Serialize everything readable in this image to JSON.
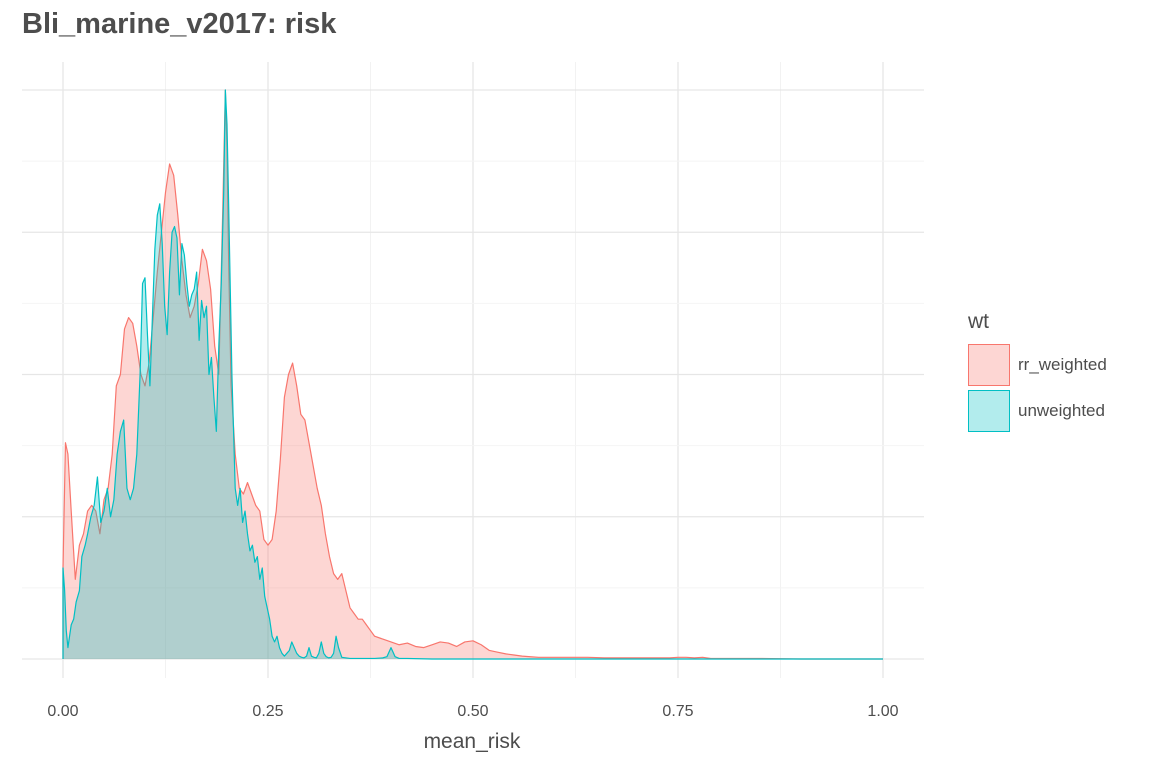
{
  "chart_data": {
    "type": "area",
    "title": "Bli_marine_v2017: risk",
    "xlabel": "mean_risk",
    "ylabel": "",
    "xlim": [
      0,
      1
    ],
    "ylim": [
      0,
      1
    ],
    "x_ticks": [
      {
        "value": 0,
        "label": "0.00"
      },
      {
        "value": 0.25,
        "label": "0.25"
      },
      {
        "value": 0.5,
        "label": "0.50"
      },
      {
        "value": 0.75,
        "label": "0.75"
      },
      {
        "value": 1,
        "label": "1.00"
      }
    ],
    "y_grid": [
      0,
      0.25,
      0.5,
      0.75,
      1
    ],
    "y_tick_labels_shown": false,
    "grid": true,
    "legend": {
      "title": "wt",
      "position": "right"
    },
    "series": [
      {
        "name": "rr_weighted",
        "color": "#F8766D",
        "fill": "#F8766D",
        "fill_opacity": 0.3,
        "x": [
          0,
          0.003,
          0.006,
          0.01,
          0.015,
          0.02,
          0.025,
          0.03,
          0.035,
          0.04,
          0.045,
          0.05,
          0.055,
          0.06,
          0.065,
          0.07,
          0.075,
          0.08,
          0.085,
          0.09,
          0.095,
          0.1,
          0.105,
          0.11,
          0.115,
          0.12,
          0.125,
          0.13,
          0.135,
          0.14,
          0.145,
          0.15,
          0.155,
          0.16,
          0.165,
          0.17,
          0.175,
          0.18,
          0.185,
          0.19,
          0.195,
          0.198,
          0.2,
          0.202,
          0.205,
          0.21,
          0.215,
          0.22,
          0.225,
          0.23,
          0.235,
          0.24,
          0.245,
          0.25,
          0.255,
          0.26,
          0.265,
          0.27,
          0.275,
          0.28,
          0.285,
          0.29,
          0.295,
          0.3,
          0.305,
          0.31,
          0.315,
          0.32,
          0.325,
          0.33,
          0.335,
          0.34,
          0.345,
          0.35,
          0.355,
          0.36,
          0.365,
          0.37,
          0.375,
          0.38,
          0.39,
          0.4,
          0.41,
          0.42,
          0.43,
          0.44,
          0.45,
          0.46,
          0.47,
          0.48,
          0.49,
          0.5,
          0.51,
          0.52,
          0.53,
          0.54,
          0.55,
          0.56,
          0.57,
          0.58,
          0.6,
          0.62,
          0.64,
          0.66,
          0.68,
          0.7,
          0.72,
          0.74,
          0.75,
          0.76,
          0.77,
          0.78,
          0.79,
          0.8,
          0.85,
          0.9,
          0.95,
          1.0
        ],
        "y": [
          0.16,
          0.38,
          0.36,
          0.26,
          0.14,
          0.2,
          0.22,
          0.26,
          0.27,
          0.26,
          0.22,
          0.28,
          0.3,
          0.36,
          0.48,
          0.5,
          0.58,
          0.6,
          0.59,
          0.55,
          0.5,
          0.48,
          0.52,
          0.6,
          0.68,
          0.75,
          0.82,
          0.87,
          0.85,
          0.78,
          0.7,
          0.64,
          0.6,
          0.62,
          0.66,
          0.72,
          0.7,
          0.65,
          0.55,
          0.5,
          0.8,
          1.0,
          0.9,
          0.7,
          0.48,
          0.36,
          0.3,
          0.29,
          0.31,
          0.29,
          0.27,
          0.26,
          0.21,
          0.2,
          0.21,
          0.26,
          0.35,
          0.46,
          0.5,
          0.52,
          0.48,
          0.43,
          0.42,
          0.38,
          0.34,
          0.3,
          0.27,
          0.22,
          0.18,
          0.15,
          0.14,
          0.15,
          0.12,
          0.09,
          0.08,
          0.07,
          0.07,
          0.06,
          0.05,
          0.04,
          0.035,
          0.03,
          0.025,
          0.028,
          0.022,
          0.02,
          0.025,
          0.03,
          0.028,
          0.022,
          0.03,
          0.032,
          0.025,
          0.015,
          0.012,
          0.009,
          0.007,
          0.005,
          0.004,
          0.003,
          0.003,
          0.003,
          0.003,
          0.002,
          0.002,
          0.002,
          0.002,
          0.002,
          0.003,
          0.003,
          0.002,
          0.003,
          0.001,
          0.001,
          0.001,
          0.0,
          0.0,
          0.0
        ]
      },
      {
        "name": "unweighted",
        "color": "#00BFC4",
        "fill": "#00BFC4",
        "fill_opacity": 0.3,
        "x": [
          0,
          0.002,
          0.004,
          0.006,
          0.008,
          0.01,
          0.013,
          0.016,
          0.02,
          0.023,
          0.027,
          0.03,
          0.034,
          0.038,
          0.042,
          0.046,
          0.05,
          0.054,
          0.058,
          0.062,
          0.066,
          0.07,
          0.074,
          0.078,
          0.082,
          0.086,
          0.09,
          0.094,
          0.097,
          0.1,
          0.103,
          0.106,
          0.109,
          0.112,
          0.115,
          0.118,
          0.121,
          0.124,
          0.127,
          0.13,
          0.133,
          0.136,
          0.139,
          0.142,
          0.145,
          0.148,
          0.151,
          0.154,
          0.157,
          0.16,
          0.163,
          0.166,
          0.169,
          0.172,
          0.175,
          0.178,
          0.181,
          0.184,
          0.187,
          0.19,
          0.193,
          0.196,
          0.198,
          0.2,
          0.202,
          0.204,
          0.206,
          0.208,
          0.21,
          0.213,
          0.216,
          0.219,
          0.222,
          0.225,
          0.228,
          0.231,
          0.234,
          0.237,
          0.24,
          0.243,
          0.246,
          0.249,
          0.252,
          0.255,
          0.258,
          0.261,
          0.264,
          0.267,
          0.27,
          0.273,
          0.276,
          0.279,
          0.282,
          0.285,
          0.288,
          0.291,
          0.294,
          0.297,
          0.3,
          0.303,
          0.306,
          0.309,
          0.312,
          0.315,
          0.318,
          0.321,
          0.324,
          0.327,
          0.33,
          0.333,
          0.336,
          0.34,
          0.35,
          0.36,
          0.37,
          0.38,
          0.39,
          0.395,
          0.4,
          0.405,
          0.41,
          0.42,
          0.45,
          0.5,
          0.6,
          0.8,
          1.0
        ],
        "y": [
          0.16,
          0.12,
          0.05,
          0.02,
          0.04,
          0.06,
          0.07,
          0.1,
          0.12,
          0.18,
          0.2,
          0.22,
          0.25,
          0.27,
          0.32,
          0.24,
          0.26,
          0.3,
          0.25,
          0.28,
          0.36,
          0.4,
          0.42,
          0.3,
          0.28,
          0.3,
          0.36,
          0.5,
          0.66,
          0.67,
          0.57,
          0.48,
          0.6,
          0.72,
          0.78,
          0.8,
          0.73,
          0.62,
          0.57,
          0.68,
          0.75,
          0.76,
          0.74,
          0.64,
          0.73,
          0.71,
          0.66,
          0.62,
          0.64,
          0.65,
          0.68,
          0.56,
          0.63,
          0.6,
          0.62,
          0.5,
          0.53,
          0.46,
          0.4,
          0.55,
          0.66,
          0.82,
          1.0,
          0.94,
          0.8,
          0.65,
          0.5,
          0.4,
          0.3,
          0.27,
          0.3,
          0.24,
          0.26,
          0.22,
          0.19,
          0.2,
          0.17,
          0.18,
          0.14,
          0.16,
          0.11,
          0.09,
          0.07,
          0.04,
          0.03,
          0.04,
          0.02,
          0.01,
          0.005,
          0.01,
          0.015,
          0.03,
          0.02,
          0.01,
          0.005,
          0.003,
          0.002,
          0.005,
          0.02,
          0.005,
          0.003,
          0.002,
          0.01,
          0.03,
          0.01,
          0.004,
          0.002,
          0.003,
          0.01,
          0.04,
          0.02,
          0.003,
          0.001,
          0.001,
          0.001,
          0.001,
          0.002,
          0.004,
          0.02,
          0.004,
          0.001,
          0.001,
          0.0,
          0.0,
          0.0,
          0.0,
          0.0
        ]
      }
    ]
  }
}
